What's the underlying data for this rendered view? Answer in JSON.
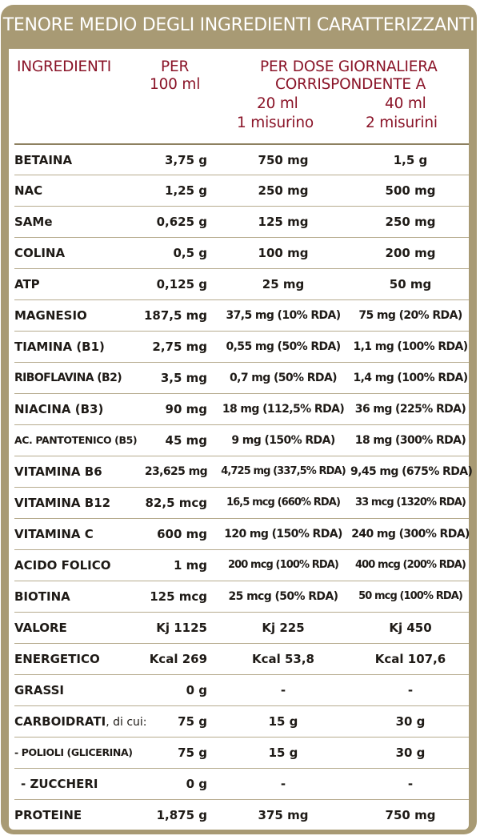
{
  "title": "TENORE MEDIO DEGLI INGREDIENTI CARATTERIZZANTI",
  "headers": {
    "ingredients": "INGREDIENTI",
    "per_line1": "PER",
    "per_line2": "100 ml",
    "daily_line1": "PER DOSE GIORNALIERA",
    "daily_line2": "CORRISPONDENTE A",
    "dose1_amount": "20 ml",
    "dose1_unit": "1 misurino",
    "dose2_amount": "40 ml",
    "dose2_unit": "2 misurini"
  },
  "rows": [
    {
      "name": "BETAINA",
      "per100": "3,75 g",
      "dose1": "750 mg",
      "dose2": "1,5 g"
    },
    {
      "name": "NAC",
      "per100": "1,25 g",
      "dose1": "250 mg",
      "dose2": "500 mg"
    },
    {
      "name": "SAMe",
      "per100": "0,625 g",
      "dose1": "125 mg",
      "dose2": "250 mg"
    },
    {
      "name": "COLINA",
      "per100": "0,5 g",
      "dose1": "100 mg",
      "dose2": "200 mg"
    },
    {
      "name": "ATP",
      "per100": "0,125 g",
      "dose1": "25 mg",
      "dose2": "50 mg"
    },
    {
      "name": "MAGNESIO",
      "per100": "187,5 mg",
      "dose1": "37,5 mg (10% RDA)",
      "dose2": "75 mg (20% RDA)"
    },
    {
      "name": "TIAMINA (B1)",
      "per100": "2,75 mg",
      "dose1": "0,55 mg (50% RDA)",
      "dose2": "1,1 mg (100% RDA)"
    },
    {
      "name": "RIBOFLAVINA (B2)",
      "per100": "3,5 mg",
      "dose1": "0,7 mg (50% RDA)",
      "dose2": "1,4 mg (100% RDA)"
    },
    {
      "name": "NIACINA (B3)",
      "per100": "90 mg",
      "dose1": "18 mg (112,5% RDA)",
      "dose2": "36 mg (225% RDA)"
    },
    {
      "name": "AC. PANTOTENICO (B5)",
      "per100": "45 mg",
      "dose1": "9 mg (150% RDA)",
      "dose2": "18 mg (300% RDA)"
    },
    {
      "name": "VITAMINA B6",
      "per100": "23,625 mg",
      "dose1": "4,725 mg (337,5% RDA)",
      "dose2": "9,45 mg (675% RDA)"
    },
    {
      "name": "VITAMINA B12",
      "per100": "82,5 mcg",
      "dose1": "16,5 mcg (660% RDA)",
      "dose2": "33 mcg (1320% RDA)"
    },
    {
      "name": "VITAMINA C",
      "per100": "600 mg",
      "dose1": "120 mg (150% RDA)",
      "dose2": "240 mg (300% RDA)"
    },
    {
      "name": "ACIDO FOLICO",
      "per100": "1 mg",
      "dose1": "200 mcg (100% RDA)",
      "dose2": "400 mcg (200% RDA)"
    },
    {
      "name": "BIOTINA",
      "per100": "125 mcg",
      "dose1": "25 mcg (50% RDA)",
      "dose2": "50 mcg (100% RDA)"
    },
    {
      "name": "VALORE",
      "per100": "Kj 1125",
      "dose1": "Kj 225",
      "dose2": "Kj 450"
    },
    {
      "name": "ENERGETICO",
      "per100": "Kcal 269",
      "dose1": "Kcal 53,8",
      "dose2": "Kcal 107,6"
    },
    {
      "name": "GRASSI",
      "per100": "0 g",
      "dose1": "-",
      "dose2": "-"
    },
    {
      "name_main": "CARBOIDRATI",
      "name_suffix": ", di cui:",
      "per100": "75 g",
      "dose1": "15 g",
      "dose2": "30 g"
    },
    {
      "name": "- POLIOLI (GLICERINA)",
      "per100": "75 g",
      "dose1": "15 g",
      "dose2": "30 g"
    },
    {
      "name": "- ZUCCHERI",
      "per100": "0 g",
      "dose1": "-",
      "dose2": "-"
    },
    {
      "name": "PROTEINE",
      "per100": "1,875 g",
      "dose1": "375 mg",
      "dose2": "750 mg"
    }
  ]
}
